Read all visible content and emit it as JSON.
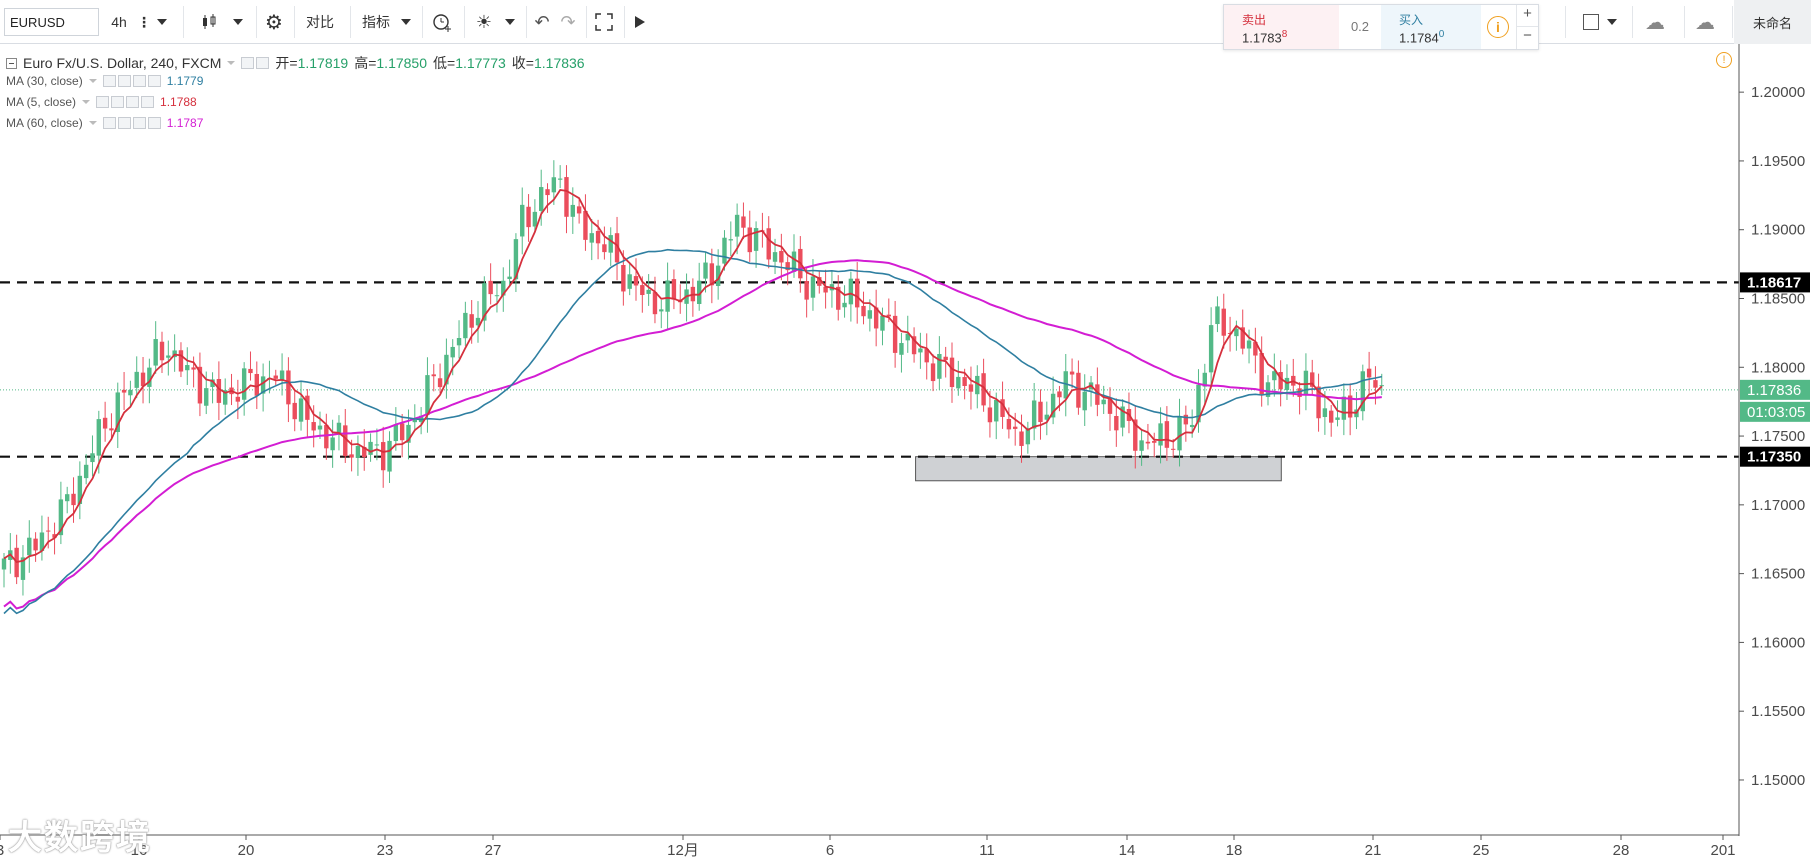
{
  "toolbar": {
    "symbol": "EURUSD",
    "interval": "4h",
    "compare_label": "对比",
    "indicators_label": "指标",
    "layout_name": "未命名",
    "trade": {
      "sell_label": "卖出",
      "sell_price": "1.1783",
      "sell_sup": "8",
      "spread": "0.2",
      "buy_label": "买入",
      "buy_price": "1.1784",
      "buy_sup": "0",
      "plus": "+",
      "minus": "−"
    }
  },
  "legend": {
    "title": "Euro Fx/U.S. Dollar, 240, FXCM",
    "open_label": "开=",
    "open": "1.17819",
    "high_label": "高=",
    "high": "1.17850",
    "low_label": "低=",
    "low": "1.17773",
    "close_label": "收=",
    "close": "1.17836",
    "ma": [
      {
        "label": "MA (30, close)",
        "value": "1.1779",
        "color": "#2f7fa1"
      },
      {
        "label": "MA (5, close)",
        "value": "1.1788",
        "color": "#d5303d"
      },
      {
        "label": "MA (60, close)",
        "value": "1.1787",
        "color": "#d31dd3"
      }
    ]
  },
  "chart_data": {
    "type": "candlestick",
    "symbol": "EURUSD",
    "ylim": [
      1.146,
      1.2035
    ],
    "y_ticks": [
      "1.20000",
      "1.19500",
      "1.19000",
      "1.18500",
      "1.18000",
      "1.17500",
      "1.17000",
      "1.16500",
      "1.16000",
      "1.15500",
      "1.15000"
    ],
    "x_ticks": [
      "3",
      "16",
      "20",
      "23",
      "27",
      "12月",
      "6",
      "11",
      "14",
      "18",
      "21",
      "25",
      "28",
      "201"
    ],
    "levels": [
      {
        "value": 1.18617,
        "label": "1.18617",
        "style": "dashed"
      },
      {
        "value": 1.1735,
        "label": "1.17350",
        "style": "dashed"
      }
    ],
    "last_price": {
      "value": 1.17836,
      "label": "1.17836",
      "countdown": "01:03:05"
    },
    "support_box": {
      "x_from": 0.5265,
      "x_to": 0.7368,
      "y_from": 1.17175,
      "y_to": 1.1735
    },
    "colors": {
      "up": "#53b987",
      "down": "#eb4d5c",
      "ma30": "#2f7fa1",
      "ma5": "#d5303d",
      "ma60": "#d31dd3"
    },
    "closes_anchor": [
      [
        0,
        1.1655
      ],
      [
        5,
        1.167
      ],
      [
        10,
        1.17
      ],
      [
        16,
        1.176
      ],
      [
        21,
        1.1792
      ],
      [
        26,
        1.1815
      ],
      [
        29,
        1.1795
      ],
      [
        34,
        1.1778
      ],
      [
        39,
        1.179
      ],
      [
        43,
        1.1793
      ],
      [
        48,
        1.176
      ],
      [
        52,
        1.1748
      ],
      [
        56,
        1.1738
      ],
      [
        60,
        1.174
      ],
      [
        64,
        1.1756
      ],
      [
        68,
        1.179
      ],
      [
        72,
        1.1822
      ],
      [
        75,
        1.1845
      ],
      [
        79,
        1.186
      ],
      [
        82,
        1.1905
      ],
      [
        85,
        1.1925
      ],
      [
        88,
        1.1935
      ],
      [
        91,
        1.1902
      ],
      [
        95,
        1.189
      ],
      [
        98,
        1.1868
      ],
      [
        102,
        1.1848
      ],
      [
        106,
        1.185
      ],
      [
        110,
        1.1858
      ],
      [
        113,
        1.1878
      ],
      [
        116,
        1.1905
      ],
      [
        120,
        1.189
      ],
      [
        124,
        1.1875
      ],
      [
        127,
        1.1862
      ],
      [
        130,
        1.1855
      ],
      [
        134,
        1.185
      ],
      [
        138,
        1.1835
      ],
      [
        142,
        1.182
      ],
      [
        146,
        1.1805
      ],
      [
        150,
        1.1795
      ],
      [
        153,
        1.1785
      ],
      [
        157,
        1.1768
      ],
      [
        160,
        1.175
      ],
      [
        164,
        1.1765
      ],
      [
        168,
        1.179
      ],
      [
        172,
        1.178
      ],
      [
        176,
        1.1765
      ],
      [
        180,
        1.1745
      ],
      [
        184,
        1.1748
      ],
      [
        188,
        1.176
      ],
      [
        191,
        1.183
      ],
      [
        194,
        1.183
      ],
      [
        197,
        1.1812
      ],
      [
        200,
        1.1787
      ],
      [
        204,
        1.179
      ],
      [
        207,
        1.1782
      ],
      [
        210,
        1.176
      ],
      [
        213,
        1.1772
      ],
      [
        216,
        1.1792
      ],
      [
        218,
        1.1784
      ]
    ],
    "n_bars": 219
  },
  "watermark": "大数跨境",
  "icons": [
    "chart-type-icon",
    "settings-icon",
    "alert-icon",
    "theme-icon",
    "undo-icon",
    "redo-icon",
    "fullscreen-icon",
    "play-icon",
    "info-icon",
    "cloud-load-icon",
    "cloud-save-icon"
  ]
}
